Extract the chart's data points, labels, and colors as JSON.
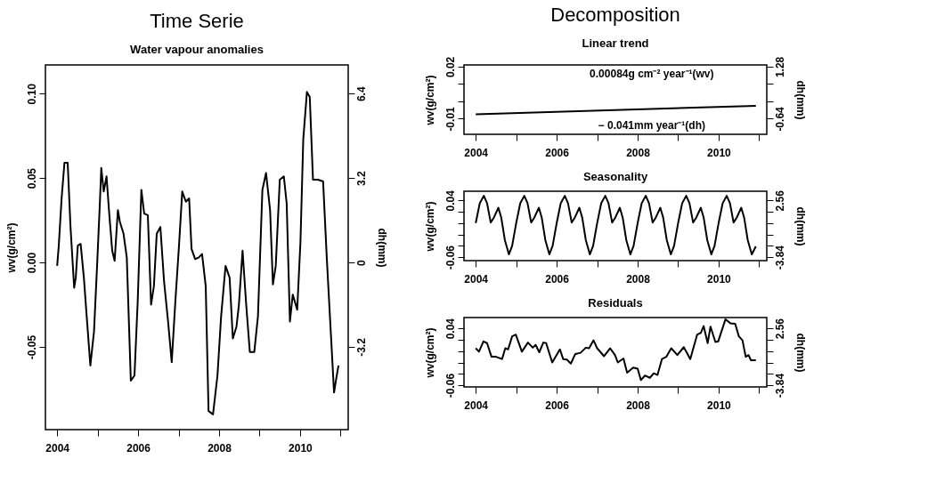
{
  "chart_data": [
    {
      "type": "line",
      "title": "Time Serie",
      "subtitle": "Water vapour anomalies",
      "ylabel": "wv(g/cm²)",
      "y2label": "dh(mm)",
      "xlim": [
        2003.71,
        2011.19
      ],
      "xticks": [
        2004,
        {
          "value": 2005,
          "label": null
        },
        2006,
        {
          "value": 2007,
          "label": null
        },
        2008,
        {
          "value": 2009,
          "label": null
        },
        2010,
        {
          "value": 2011,
          "label": null
        }
      ],
      "ylim": [
        -0.099,
        0.117
      ],
      "yticks": [
        {
          "value": -0.05,
          "label": "-0.05"
        },
        {
          "value": 0,
          "label": "0.00"
        },
        {
          "value": 0.05,
          "label": "0.05"
        },
        {
          "value": 0.1,
          "label": "0.10"
        }
      ],
      "y2lim": [
        -6.336,
        7.488
      ],
      "y2ticks": [
        -3.2,
        0,
        3.2,
        6.4
      ],
      "grid": false,
      "series": [
        {
          "color": "#000000",
          "x": [
            2004.0,
            2004.04,
            2004.11,
            2004.18,
            2004.26,
            2004.33,
            2004.42,
            2004.46,
            2004.51,
            2004.58,
            2004.66,
            2004.73,
            2004.82,
            2004.91,
            2004.99,
            2005.06,
            2005.09,
            2005.15,
            2005.22,
            2005.28,
            2005.36,
            2005.42,
            2005.5,
            2005.55,
            2005.64,
            2005.72,
            2005.82,
            2005.91,
            2005.99,
            2006.08,
            2006.15,
            2006.24,
            2006.32,
            2006.39,
            2006.46,
            2006.55,
            2006.64,
            2006.74,
            2006.83,
            2006.92,
            2007.01,
            2007.09,
            2007.18,
            2007.26,
            2007.32,
            2007.41,
            2007.5,
            2007.58,
            2007.67,
            2007.74,
            2007.85,
            2007.96,
            2008.05,
            2008.16,
            2008.26,
            2008.34,
            2008.43,
            2008.49,
            2008.58,
            2008.67,
            2008.76,
            2008.87,
            2008.96,
            2009.07,
            2009.16,
            2009.26,
            2009.33,
            2009.4,
            2009.5,
            2009.6,
            2009.67,
            2009.75,
            2009.82,
            2009.93,
            2010.01,
            2010.08,
            2010.17,
            2010.24,
            2010.32,
            2010.44,
            2010.57,
            2010.66,
            2010.75,
            2010.84,
            2010.9,
            2010.95
          ],
          "values": [
            -0.002,
            0.01,
            0.038,
            0.059,
            0.059,
            0.021,
            -0.015,
            -0.009,
            0.01,
            0.011,
            -0.009,
            -0.032,
            -0.061,
            -0.041,
            0.0,
            0.038,
            0.056,
            0.042,
            0.051,
            0.031,
            0.007,
            0.001,
            0.031,
            0.024,
            0.017,
            0.003,
            -0.07,
            -0.067,
            -0.023,
            0.043,
            0.029,
            0.028,
            -0.025,
            -0.014,
            0.017,
            0.021,
            -0.011,
            -0.035,
            -0.059,
            -0.023,
            0.01,
            0.042,
            0.036,
            0.038,
            0.008,
            0.002,
            0.003,
            0.005,
            -0.014,
            -0.088,
            -0.09,
            -0.067,
            -0.032,
            -0.002,
            -0.009,
            -0.045,
            -0.038,
            -0.025,
            0.007,
            -0.025,
            -0.053,
            -0.053,
            -0.032,
            0.043,
            0.053,
            0.031,
            -0.013,
            -0.002,
            0.049,
            0.051,
            0.035,
            -0.035,
            -0.019,
            -0.028,
            0.012,
            0.073,
            0.101,
            0.098,
            0.049,
            0.049,
            0.048,
            0.003,
            -0.037,
            -0.077,
            -0.068,
            -0.061
          ]
        }
      ]
    },
    {
      "type": "line",
      "title": "Decomposition",
      "subtitle": "Linear trend",
      "ylabel": "wv(g/cm²)",
      "y2label": "dh(mm)",
      "xlim": [
        2003.71,
        2011.19
      ],
      "xticks": [
        2004,
        {
          "value": 2005,
          "label": null
        },
        2006,
        {
          "value": 2007,
          "label": null
        },
        2008,
        {
          "value": 2009,
          "label": null
        },
        2010,
        {
          "value": 2011,
          "label": null
        }
      ],
      "ylim": [
        -0.019,
        0.021
      ],
      "yticks": [
        {
          "value": -0.01,
          "label": "-0.01"
        },
        {
          "value": 0,
          "label": null
        },
        {
          "value": 0.01,
          "label": null
        },
        {
          "value": 0.02,
          "label": "0.02"
        }
      ],
      "y2lim": [
        -1.216,
        1.344
      ],
      "y2ticks": [
        -0.64,
        {
          "value": 0,
          "label": null
        },
        {
          "value": 0.64,
          "label": null
        },
        1.28
      ],
      "grid": false,
      "annotations": [
        "0.00084g cm⁻² year⁻¹(wv)",
        "− 0.041mm year⁻¹(dh)"
      ],
      "series": [
        {
          "color": "#000000",
          "x": [
            2004.0,
            2010.92
          ],
          "values": [
            -0.0074,
            -0.0026
          ]
        }
      ]
    },
    {
      "type": "line",
      "title": "Seasonality",
      "ylabel": "wv(g/cm²)",
      "y2label": "dh(mm)",
      "xlim": [
        2003.71,
        2011.19
      ],
      "xticks": [
        2004,
        {
          "value": 2005,
          "label": null
        },
        2006,
        {
          "value": 2007,
          "label": null
        },
        2008,
        {
          "value": 2009,
          "label": null
        },
        2010,
        {
          "value": 2011,
          "label": null
        }
      ],
      "ylim": [
        -0.066,
        0.056
      ],
      "yticks": [
        {
          "value": -0.06,
          "label": "-0.06"
        },
        {
          "value": -0.04,
          "label": null
        },
        {
          "value": -0.02,
          "label": null
        },
        {
          "value": 0,
          "label": null
        },
        {
          "value": 0.02,
          "label": null
        },
        {
          "value": 0.04,
          "label": "0.04"
        }
      ],
      "y2lim": [
        -4.224,
        3.584
      ],
      "y2ticks": [
        -3.84,
        {
          "value": -2.56,
          "label": null
        },
        {
          "value": -1.28,
          "label": null
        },
        {
          "value": 0,
          "label": null
        },
        {
          "value": 1.28,
          "label": null
        },
        2.56
      ],
      "grid": false,
      "series": [
        {
          "color": "#000000",
          "x": [
            2004,
            2004.1,
            2004.2,
            2004.28,
            2004.37,
            2004.45,
            2004.56,
            2004.63,
            2004.72,
            2004.82,
            2004.9,
            2005,
            2005.1,
            2005.2,
            2005.28,
            2005.37,
            2005.45,
            2005.56,
            2005.63,
            2005.72,
            2005.82,
            2005.9,
            2006,
            2006.1,
            2006.2,
            2006.28,
            2006.37,
            2006.45,
            2006.56,
            2006.63,
            2006.72,
            2006.82,
            2006.9,
            2007,
            2007.1,
            2007.2,
            2007.28,
            2007.37,
            2007.45,
            2007.56,
            2007.63,
            2007.72,
            2007.82,
            2007.9,
            2008,
            2008.1,
            2008.2,
            2008.28,
            2008.37,
            2008.45,
            2008.56,
            2008.63,
            2008.72,
            2008.82,
            2008.9,
            2009,
            2009.1,
            2009.2,
            2009.28,
            2009.37,
            2009.45,
            2009.56,
            2009.63,
            2009.72,
            2009.82,
            2009.9,
            2010,
            2010.1,
            2010.2,
            2010.28,
            2010.37,
            2010.45,
            2010.56,
            2010.63,
            2010.72,
            2010.82,
            2010.92
          ],
          "values": [
            0.0,
            0.035,
            0.048,
            0.035,
            0.001,
            0.01,
            0.027,
            0.01,
            -0.03,
            -0.055,
            -0.04,
            0.0,
            0.035,
            0.048,
            0.035,
            0.001,
            0.01,
            0.027,
            0.01,
            -0.03,
            -0.055,
            -0.04,
            0.0,
            0.035,
            0.048,
            0.035,
            0.001,
            0.01,
            0.027,
            0.01,
            -0.03,
            -0.055,
            -0.04,
            0.0,
            0.035,
            0.048,
            0.035,
            0.001,
            0.01,
            0.027,
            0.01,
            -0.03,
            -0.055,
            -0.04,
            0.0,
            0.035,
            0.048,
            0.035,
            0.001,
            0.01,
            0.027,
            0.01,
            -0.03,
            -0.055,
            -0.04,
            0.0,
            0.035,
            0.048,
            0.035,
            0.001,
            0.01,
            0.027,
            0.01,
            -0.03,
            -0.055,
            -0.04,
            0.0,
            0.035,
            0.048,
            0.035,
            0.001,
            0.01,
            0.027,
            0.01,
            -0.03,
            -0.055,
            -0.041
          ]
        }
      ]
    },
    {
      "type": "line",
      "title": "Residuals",
      "ylabel": "wv(g/cm²)",
      "y2label": "dh(mm)",
      "xlim": [
        2003.71,
        2011.19
      ],
      "xticks": [
        2004,
        {
          "value": 2005,
          "label": null
        },
        2006,
        {
          "value": 2007,
          "label": null
        },
        2008,
        {
          "value": 2009,
          "label": null
        },
        2010,
        {
          "value": 2011,
          "label": null
        }
      ],
      "ylim": [
        -0.063,
        0.059
      ],
      "yticks": [
        {
          "value": -0.06,
          "label": "-0.06"
        },
        {
          "value": -0.04,
          "label": null
        },
        {
          "value": -0.02,
          "label": null
        },
        {
          "value": 0,
          "label": null
        },
        {
          "value": 0.02,
          "label": null
        },
        {
          "value": 0.04,
          "label": "0.04"
        }
      ],
      "y2lim": [
        -4.032,
        3.776
      ],
      "y2ticks": [
        -3.84,
        {
          "value": -2.56,
          "label": null
        },
        {
          "value": -1.28,
          "label": null
        },
        {
          "value": 0,
          "label": null
        },
        {
          "value": 1.28,
          "label": null
        },
        2.56
      ],
      "grid": false,
      "series": [
        {
          "color": "#000000",
          "x": [
            2004.0,
            2004.08,
            2004.19,
            2004.28,
            2004.39,
            2004.5,
            2004.65,
            2004.73,
            2004.8,
            2004.9,
            2004.99,
            2005.14,
            2005.29,
            2005.41,
            2005.48,
            2005.57,
            2005.67,
            2005.74,
            2005.89,
            2006.08,
            2006.16,
            2006.25,
            2006.35,
            2006.46,
            2006.59,
            2006.72,
            2006.8,
            2006.91,
            2007.0,
            2007.17,
            2007.32,
            2007.44,
            2007.51,
            2007.65,
            2007.74,
            2007.89,
            2008.0,
            2008.08,
            2008.18,
            2008.3,
            2008.4,
            2008.49,
            2008.6,
            2008.71,
            2008.83,
            2008.98,
            2009.14,
            2009.3,
            2009.47,
            2009.56,
            2009.63,
            2009.73,
            2009.8,
            2009.92,
            2009.99,
            2010.17,
            2010.29,
            2010.41,
            2010.5,
            2010.59,
            2010.67,
            2010.74,
            2010.8,
            2010.92
          ],
          "values": [
            0.005,
            -0.001,
            0.017,
            0.014,
            -0.01,
            -0.01,
            -0.014,
            0.005,
            0.003,
            0.026,
            0.029,
            -0.001,
            0.015,
            0.006,
            0.011,
            -0.002,
            0.015,
            0.014,
            -0.02,
            0.003,
            -0.014,
            -0.015,
            -0.022,
            -0.005,
            -0.003,
            0.006,
            0.005,
            0.019,
            0.005,
            -0.009,
            0.005,
            -0.007,
            -0.02,
            -0.013,
            -0.038,
            -0.029,
            -0.031,
            -0.051,
            -0.043,
            -0.047,
            -0.039,
            -0.042,
            -0.014,
            -0.01,
            0.005,
            -0.007,
            0.007,
            -0.014,
            0.029,
            0.032,
            0.044,
            0.014,
            0.043,
            0.016,
            0.017,
            0.056,
            0.049,
            0.048,
            0.026,
            0.019,
            -0.01,
            -0.007,
            -0.016,
            -0.016
          ]
        }
      ]
    }
  ]
}
